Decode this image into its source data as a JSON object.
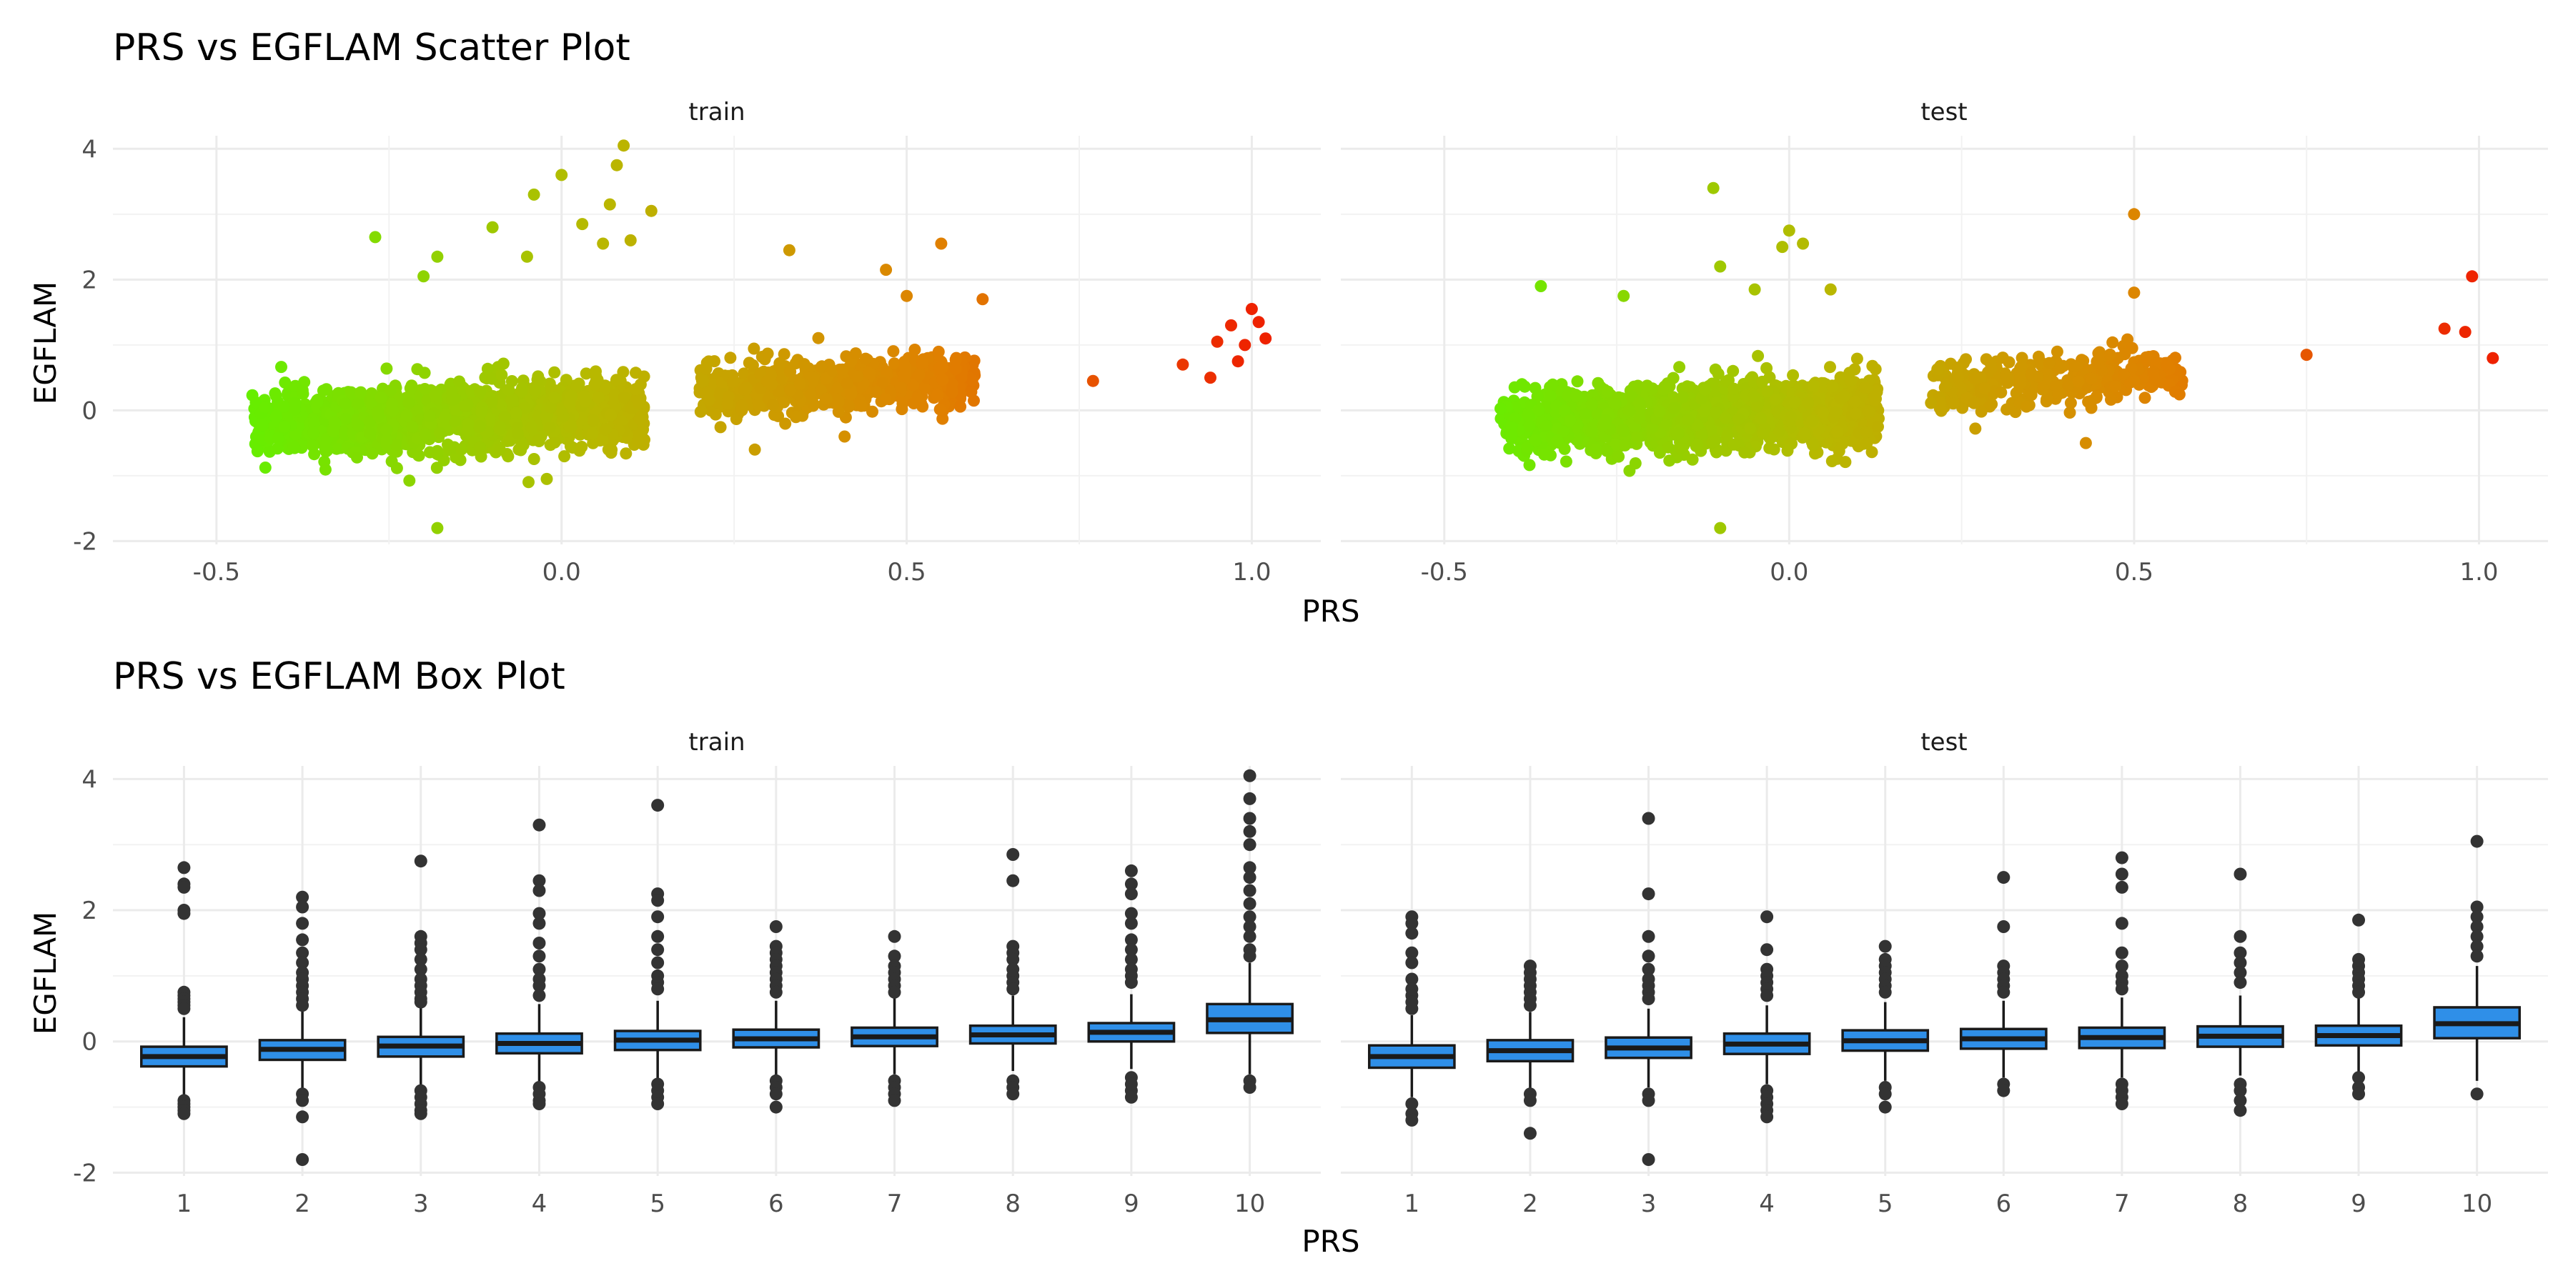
{
  "scatter": {
    "title": "PRS vs EGFLAM Scatter Plot",
    "xlabel": "PRS",
    "ylabel": "EGFLAM",
    "panels": [
      "train",
      "test"
    ],
    "x_ticks": [
      "-0.5",
      "0.0",
      "0.5",
      "1.0"
    ],
    "y_ticks": [
      "-2",
      "0",
      "2",
      "4"
    ]
  },
  "box": {
    "title": "PRS vs EGFLAM Box Plot",
    "xlabel": "PRS",
    "ylabel": "EGFLAM",
    "panels": [
      "train",
      "test"
    ],
    "x_ticks": [
      "1",
      "2",
      "3",
      "4",
      "5",
      "6",
      "7",
      "8",
      "9",
      "10"
    ],
    "y_ticks": [
      "-2",
      "0",
      "2",
      "4"
    ]
  },
  "colors": {
    "point_low": "#66ee00",
    "point_mid": "#b8b800",
    "point_high": "#e08000",
    "point_max": "#ee2200",
    "box_fill": "#2f8fe8",
    "box_line": "#1a1a1a",
    "outlier": "#333333"
  },
  "chart_data": [
    {
      "type": "scatter",
      "title": "PRS vs EGFLAM Scatter Plot",
      "xlabel": "PRS",
      "ylabel": "EGFLAM",
      "facets": [
        "train",
        "test"
      ],
      "xlim": [
        -0.65,
        1.1
      ],
      "ylim": [
        -2.05,
        4.2
      ],
      "color_scale": "gradient green (low PRS) -> yellow -> orange -> red (high PRS)",
      "series": [
        {
          "name": "train",
          "clusters": [
            {
              "x_range": [
                -0.45,
                0.12
              ],
              "y_center": -0.1,
              "y_spread": 0.45,
              "density": "dense"
            },
            {
              "x_range": [
                0.2,
                0.6
              ],
              "y_center": 0.4,
              "y_spread": 0.35,
              "density": "dense"
            }
          ],
          "points": [
            [
              -0.27,
              2.65
            ],
            [
              -0.2,
              2.05
            ],
            [
              -0.18,
              2.35
            ],
            [
              -0.1,
              2.8
            ],
            [
              -0.05,
              2.35
            ],
            [
              -0.04,
              3.3
            ],
            [
              0.0,
              3.6
            ],
            [
              0.03,
              2.85
            ],
            [
              0.06,
              2.55
            ],
            [
              0.07,
              3.15
            ],
            [
              0.08,
              3.75
            ],
            [
              0.09,
              4.05
            ],
            [
              0.1,
              2.6
            ],
            [
              0.13,
              3.05
            ],
            [
              -0.18,
              -1.8
            ],
            [
              0.33,
              2.45
            ],
            [
              0.47,
              2.15
            ],
            [
              0.5,
              1.75
            ],
            [
              0.55,
              2.55
            ],
            [
              0.61,
              1.7
            ],
            [
              0.28,
              -0.6
            ],
            [
              0.41,
              -0.4
            ],
            [
              0.77,
              0.45
            ],
            [
              0.9,
              0.7
            ],
            [
              0.94,
              0.5
            ],
            [
              0.95,
              1.05
            ],
            [
              0.97,
              1.3
            ],
            [
              0.98,
              0.75
            ],
            [
              0.99,
              1.0
            ],
            [
              1.0,
              1.55
            ],
            [
              1.01,
              1.35
            ],
            [
              1.02,
              1.1
            ]
          ]
        },
        {
          "name": "test",
          "clusters": [
            {
              "x_range": [
                -0.42,
                0.13
              ],
              "y_center": -0.1,
              "y_spread": 0.45,
              "density": "dense"
            },
            {
              "x_range": [
                0.2,
                0.57
              ],
              "y_center": 0.45,
              "y_spread": 0.35,
              "density": "medium"
            }
          ],
          "points": [
            [
              -0.36,
              1.9
            ],
            [
              -0.24,
              1.75
            ],
            [
              -0.11,
              3.4
            ],
            [
              -0.1,
              2.2
            ],
            [
              -0.05,
              1.85
            ],
            [
              -0.01,
              2.5
            ],
            [
              0.0,
              2.75
            ],
            [
              0.02,
              2.55
            ],
            [
              0.06,
              1.85
            ],
            [
              -0.1,
              -1.8
            ],
            [
              0.5,
              3.0
            ],
            [
              0.5,
              1.8
            ],
            [
              0.43,
              -0.5
            ],
            [
              0.75,
              0.85
            ],
            [
              0.95,
              1.25
            ],
            [
              0.98,
              1.2
            ],
            [
              0.99,
              2.05
            ],
            [
              1.02,
              0.8
            ]
          ]
        }
      ]
    },
    {
      "type": "box",
      "title": "PRS vs EGFLAM Box Plot",
      "xlabel": "PRS",
      "ylabel": "EGFLAM",
      "facets": [
        "train",
        "test"
      ],
      "categories": [
        "1",
        "2",
        "3",
        "4",
        "5",
        "6",
        "7",
        "8",
        "9",
        "10"
      ],
      "ylim": [
        -2.05,
        4.2
      ],
      "series": [
        {
          "name": "train",
          "boxes": [
            {
              "q1": -0.38,
              "median": -0.23,
              "q3": -0.08,
              "whisker_low": -0.83,
              "whisker_high": 0.37,
              "outliers": [
                2.65,
                2.4,
                2.35,
                2.0,
                1.95,
                0.75,
                0.7,
                0.65,
                0.6,
                0.55,
                0.5,
                -0.9,
                -0.95,
                -1.0,
                -1.05,
                -1.1
              ]
            },
            {
              "q1": -0.28,
              "median": -0.12,
              "q3": 0.02,
              "whisker_low": -0.72,
              "whisker_high": 0.47,
              "outliers": [
                2.2,
                2.05,
                1.8,
                1.55,
                1.35,
                1.2,
                1.05,
                0.95,
                0.85,
                0.75,
                0.65,
                0.55,
                -0.8,
                -0.9,
                -1.15,
                -1.8
              ]
            },
            {
              "q1": -0.23,
              "median": -0.07,
              "q3": 0.07,
              "whisker_low": -0.67,
              "whisker_high": 0.52,
              "outliers": [
                2.75,
                1.6,
                1.5,
                1.4,
                1.25,
                1.1,
                0.95,
                0.85,
                0.75,
                0.65,
                0.6,
                -0.75,
                -0.85,
                -0.95,
                -1.05,
                -1.1
              ]
            },
            {
              "q1": -0.18,
              "median": -0.03,
              "q3": 0.12,
              "whisker_low": -0.62,
              "whisker_high": 0.57,
              "outliers": [
                3.3,
                2.45,
                2.3,
                1.95,
                1.8,
                1.5,
                1.3,
                1.1,
                0.95,
                0.85,
                0.7,
                -0.7,
                -0.8,
                -0.9,
                -0.95
              ]
            },
            {
              "q1": -0.13,
              "median": 0.02,
              "q3": 0.16,
              "whisker_low": -0.57,
              "whisker_high": 0.62,
              "outliers": [
                3.6,
                2.25,
                2.15,
                1.9,
                1.6,
                1.4,
                1.2,
                1.0,
                0.9,
                0.8,
                -0.65,
                -0.75,
                -0.85,
                -0.95
              ]
            },
            {
              "q1": -0.09,
              "median": 0.04,
              "q3": 0.18,
              "whisker_low": -0.52,
              "whisker_high": 0.62,
              "outliers": [
                1.75,
                1.45,
                1.35,
                1.25,
                1.15,
                1.05,
                0.95,
                0.85,
                0.75,
                -0.6,
                -0.7,
                -0.8,
                -1.0
              ]
            },
            {
              "q1": -0.07,
              "median": 0.07,
              "q3": 0.21,
              "whisker_low": -0.5,
              "whisker_high": 0.67,
              "outliers": [
                1.6,
                1.3,
                1.15,
                1.05,
                0.95,
                0.85,
                0.75,
                -0.6,
                -0.7,
                -0.8,
                -0.9
              ]
            },
            {
              "q1": -0.03,
              "median": 0.1,
              "q3": 0.24,
              "whisker_low": -0.45,
              "whisker_high": 0.7,
              "outliers": [
                2.85,
                2.45,
                1.45,
                1.35,
                1.25,
                1.1,
                1.0,
                0.9,
                0.8,
                -0.6,
                -0.7,
                -0.8
              ]
            },
            {
              "q1": 0.0,
              "median": 0.14,
              "q3": 0.28,
              "whisker_low": -0.42,
              "whisker_high": 0.72,
              "outliers": [
                2.6,
                2.4,
                2.25,
                1.95,
                1.8,
                1.55,
                1.4,
                1.25,
                1.1,
                1.0,
                0.9,
                -0.55,
                -0.65,
                -0.75,
                -0.85
              ]
            },
            {
              "q1": 0.13,
              "median": 0.33,
              "q3": 0.57,
              "whisker_low": -0.5,
              "whisker_high": 1.2,
              "outliers": [
                4.05,
                3.7,
                3.4,
                3.2,
                3.0,
                2.65,
                2.5,
                2.3,
                2.1,
                1.9,
                1.75,
                1.6,
                1.4,
                1.3,
                -0.6,
                -0.7
              ]
            }
          ]
        },
        {
          "name": "test",
          "boxes": [
            {
              "q1": -0.4,
              "median": -0.23,
              "q3": -0.06,
              "whisker_low": -0.85,
              "whisker_high": 0.4,
              "outliers": [
                1.9,
                1.8,
                1.65,
                1.35,
                1.2,
                0.95,
                0.8,
                0.7,
                0.6,
                0.5,
                -0.95,
                -1.1,
                -1.2
              ]
            },
            {
              "q1": -0.3,
              "median": -0.14,
              "q3": 0.02,
              "whisker_low": -0.75,
              "whisker_high": 0.45,
              "outliers": [
                1.15,
                1.05,
                0.95,
                0.85,
                0.75,
                0.65,
                0.55,
                -0.8,
                -0.9,
                -1.4
              ]
            },
            {
              "q1": -0.25,
              "median": -0.1,
              "q3": 0.06,
              "whisker_low": -0.7,
              "whisker_high": 0.5,
              "outliers": [
                3.4,
                2.25,
                1.6,
                1.3,
                1.1,
                0.95,
                0.85,
                0.75,
                0.65,
                -0.8,
                -0.9,
                -1.8
              ]
            },
            {
              "q1": -0.19,
              "median": -0.04,
              "q3": 0.12,
              "whisker_low": -0.65,
              "whisker_high": 0.55,
              "outliers": [
                1.9,
                1.4,
                1.1,
                1.0,
                0.9,
                0.8,
                0.7,
                -0.75,
                -0.85,
                -0.95,
                -1.05,
                -1.15
              ]
            },
            {
              "q1": -0.14,
              "median": 0.01,
              "q3": 0.17,
              "whisker_low": -0.6,
              "whisker_high": 0.6,
              "outliers": [
                1.45,
                1.25,
                1.15,
                1.05,
                0.95,
                0.85,
                0.75,
                -0.7,
                -0.8,
                -1.0
              ]
            },
            {
              "q1": -0.11,
              "median": 0.04,
              "q3": 0.19,
              "whisker_low": -0.55,
              "whisker_high": 0.62,
              "outliers": [
                2.5,
                1.75,
                1.15,
                1.05,
                0.95,
                0.85,
                0.75,
                -0.65,
                -0.75
              ]
            },
            {
              "q1": -0.1,
              "median": 0.06,
              "q3": 0.21,
              "whisker_low": -0.55,
              "whisker_high": 0.67,
              "outliers": [
                2.8,
                2.55,
                2.35,
                1.8,
                1.35,
                1.15,
                1.0,
                0.9,
                0.8,
                -0.65,
                -0.75,
                -0.85,
                -0.95
              ]
            },
            {
              "q1": -0.08,
              "median": 0.08,
              "q3": 0.23,
              "whisker_low": -0.52,
              "whisker_high": 0.7,
              "outliers": [
                2.55,
                1.6,
                1.35,
                1.2,
                1.05,
                0.9,
                -0.65,
                -0.75,
                -0.9,
                -1.05
              ]
            },
            {
              "q1": -0.06,
              "median": 0.09,
              "q3": 0.24,
              "whisker_low": -0.5,
              "whisker_high": 0.7,
              "outliers": [
                1.85,
                1.25,
                1.15,
                1.05,
                0.95,
                0.85,
                0.75,
                -0.55,
                -0.7,
                -0.8
              ]
            },
            {
              "q1": 0.05,
              "median": 0.27,
              "q3": 0.52,
              "whisker_low": -0.6,
              "whisker_high": 1.15,
              "outliers": [
                3.05,
                2.05,
                1.9,
                1.75,
                1.6,
                1.45,
                1.3,
                -0.8
              ]
            }
          ]
        }
      ]
    }
  ]
}
